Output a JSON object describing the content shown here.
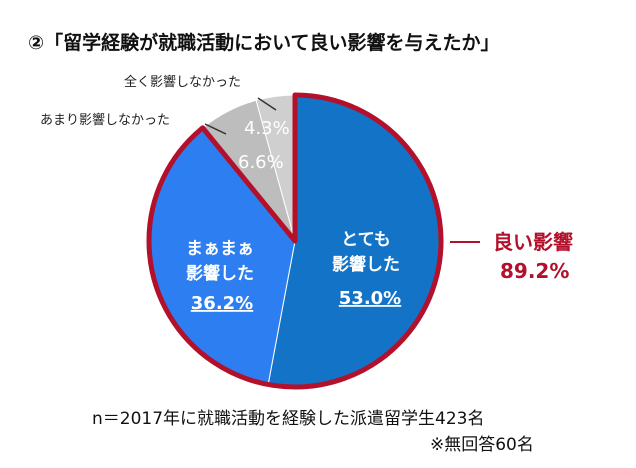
{
  "title": "②「留学経験が就職活動において良い影響を与えたか」",
  "chart_data": {
    "type": "pie",
    "title": "②「留学経験が就職活動において良い影響を与えたか」",
    "slices": [
      {
        "label_lines": [
          "とても",
          "影響した"
        ],
        "value": 53.0,
        "value_label": "53.0%",
        "color": "#1273c7"
      },
      {
        "label_lines": [
          "まぁまぁ",
          "影響した"
        ],
        "value": 36.2,
        "value_label": "36.2%",
        "color": "#2d7ff1"
      },
      {
        "label_lines": [
          "あまり影響しなかった"
        ],
        "value": 6.6,
        "value_label": "6.6%",
        "color": "#bdbdbd"
      },
      {
        "label_lines": [
          "全く影響しなかった"
        ],
        "value": 4.3,
        "value_label": "4.3%",
        "color": "#cfcfcf"
      }
    ],
    "highlight": {
      "label": "良い影響",
      "value": 89.2,
      "value_label": "89.2%",
      "color": "#b3102b"
    }
  },
  "notes": {
    "line1": "n＝2017年に就職活動を経験した派遣留学生423名",
    "line2": "※無回答60名"
  }
}
